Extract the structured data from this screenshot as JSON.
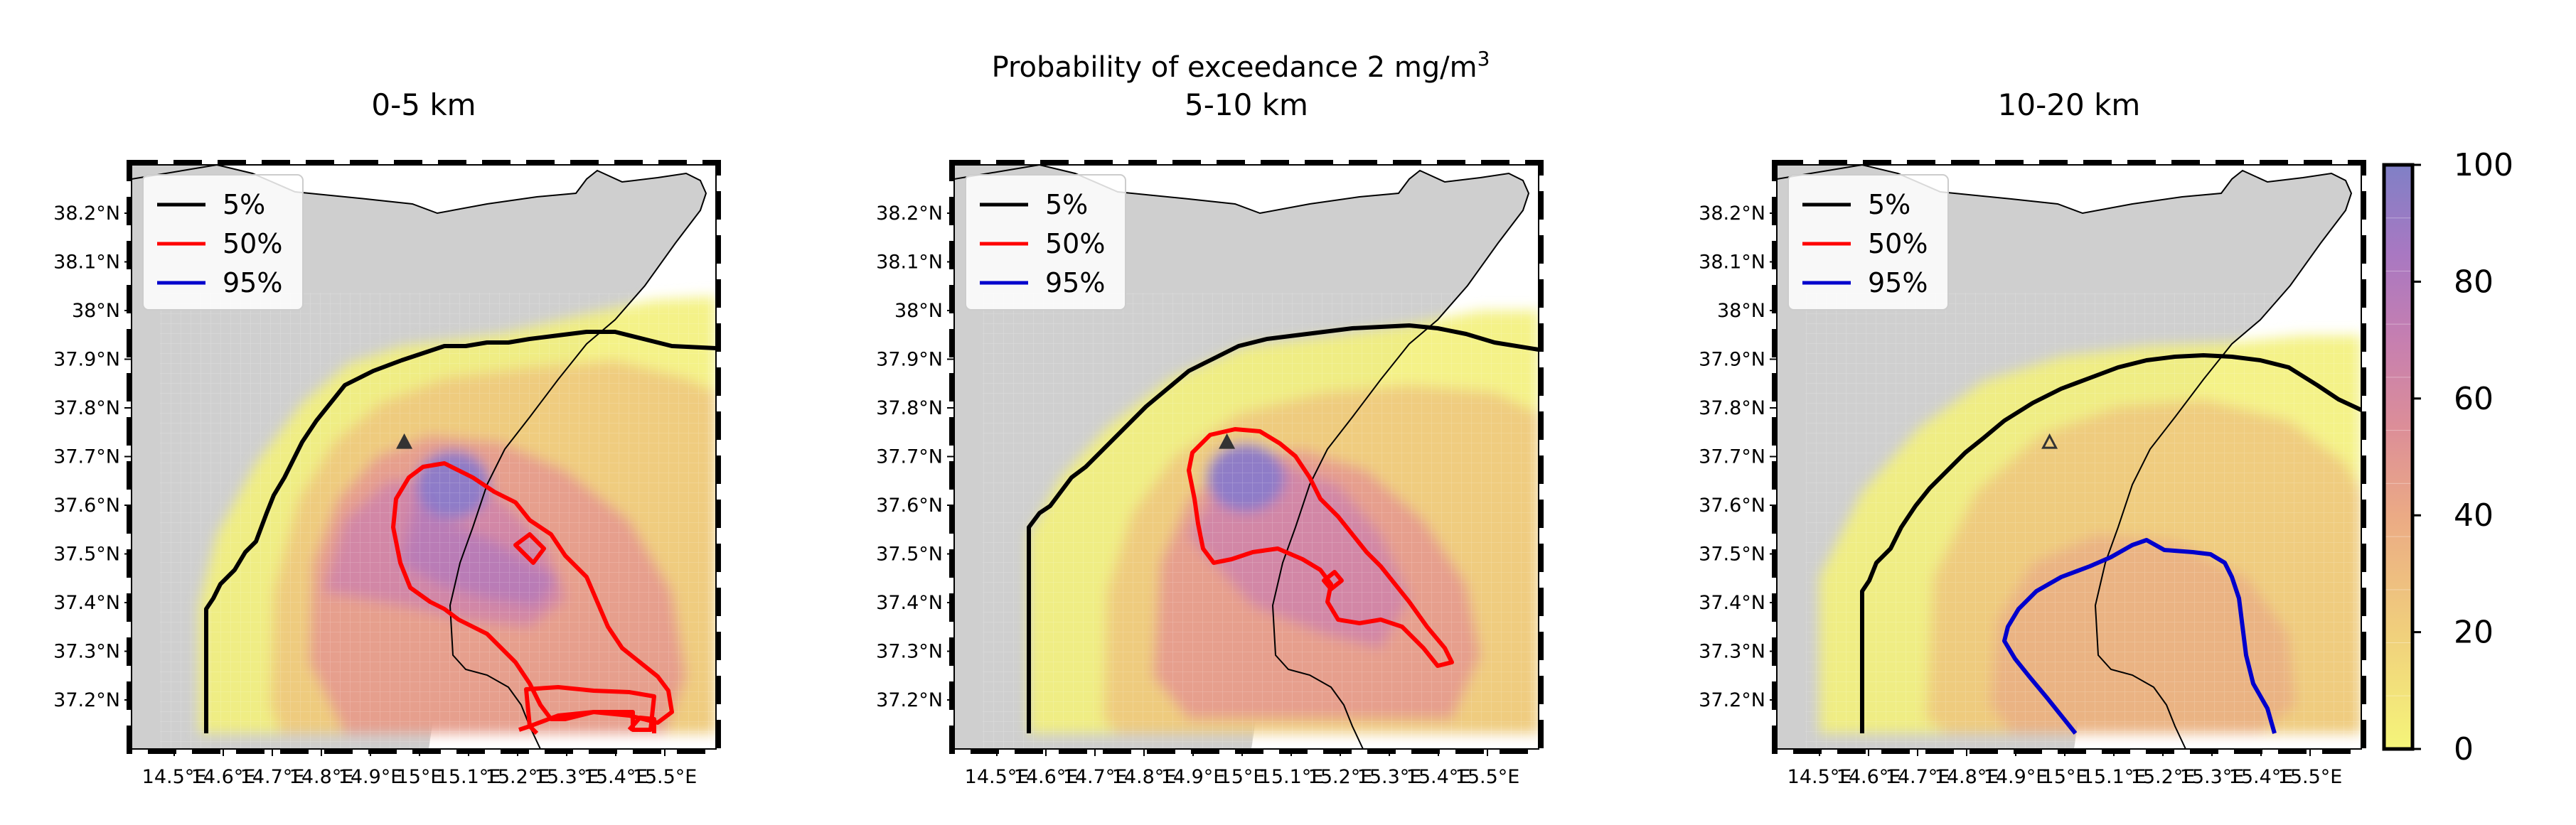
{
  "figure": {
    "suptitle": "Probability of exceedance 2 mg/m",
    "suptitle_sup": "3"
  },
  "axes": {
    "y_ticks": [
      "38.2°N",
      "38.1°N",
      "38°N",
      "37.9°N",
      "37.8°N",
      "37.7°N",
      "37.6°N",
      "37.5°N",
      "37.4°N",
      "37.3°N",
      "37.2°N"
    ],
    "x_ticks": [
      "14.5°E",
      "14.6°E",
      "14.7°E",
      "14.8°E",
      "14.9°E",
      "15°E",
      "15.1°E",
      "15.2°E",
      "15.3°E",
      "15.4°E",
      "15.5°E"
    ],
    "lon_range": [
      14.44,
      15.64
    ],
    "lat_range": [
      37.11,
      38.29
    ]
  },
  "panels": [
    {
      "title": "0-5 km"
    },
    {
      "title": "5-10 km"
    },
    {
      "title": "10-20 km"
    }
  ],
  "legend": {
    "entries": [
      {
        "label": "5%",
        "color": "#000000"
      },
      {
        "label": "50%",
        "color": "#ff0000"
      },
      {
        "label": "95%",
        "color": "#0000cc"
      }
    ]
  },
  "colorbar": {
    "ticks": [
      "0",
      "20",
      "40",
      "60",
      "80",
      "100"
    ],
    "range": [
      0,
      100
    ],
    "colors": [
      "#f5f57a",
      "#f1e27a",
      "#f0cf7c",
      "#eebd7e",
      "#ebaa85",
      "#e49a8c",
      "#dc8e98",
      "#cf84a9",
      "#bd7bb8",
      "#a878c2",
      "#8f7ac8"
    ]
  },
  "chart_data": {
    "type": "heatmap",
    "variable": "Probability of exceedance 2 mg/m3",
    "units": "%",
    "contour_levels": [
      5,
      50,
      95
    ],
    "source_marker": {
      "lon": 15.0,
      "lat": 37.73
    },
    "panels": [
      {
        "title": "0-5 km",
        "peak_percent": 100
      },
      {
        "title": "5-10 km",
        "peak_percent": 100
      },
      {
        "title": "10-20 km",
        "peak_percent": 45
      }
    ]
  },
  "colors": {
    "land": "#cfcfcf",
    "sea": "#ffffff"
  }
}
